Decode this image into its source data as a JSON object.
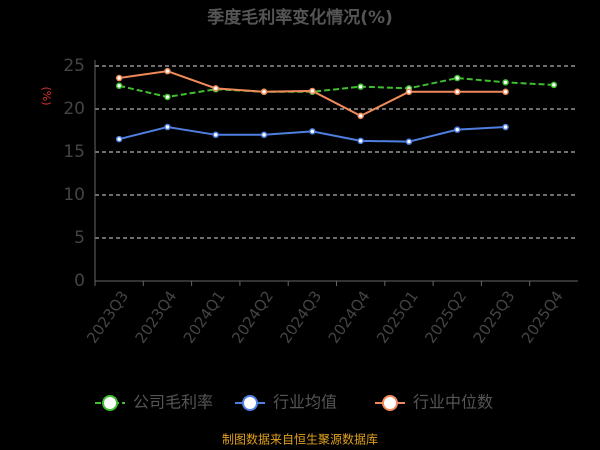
{
  "chart_data": {
    "type": "line",
    "title": "季度毛利率变化情况(%)",
    "y_label": "(%)",
    "source": "制图数据来自恒生聚源数据库",
    "categories": [
      "2023Q3",
      "2023Q4",
      "2024Q1",
      "2024Q2",
      "2024Q3",
      "2024Q4",
      "2025Q1",
      "2025Q2",
      "2025Q3",
      "2025Q4"
    ],
    "series": [
      {
        "name": "公司毛利率",
        "color": "#3fbf2f",
        "dashed": true,
        "values": [
          22.7,
          21.4,
          22.3,
          22.0,
          22.0,
          22.6,
          22.4,
          23.6,
          23.1,
          22.8
        ]
      },
      {
        "name": "行业均值",
        "color": "#4f7fe0",
        "dashed": false,
        "values": [
          16.5,
          17.9,
          17.0,
          17.0,
          17.4,
          16.3,
          16.2,
          17.6,
          17.9,
          null
        ]
      },
      {
        "name": "行业中位数",
        "color": "#f08a5a",
        "dashed": false,
        "values": [
          23.6,
          24.4,
          22.4,
          22.0,
          22.1,
          19.2,
          22.0,
          22.0,
          22.0,
          null
        ]
      }
    ],
    "ylim": [
      0,
      25
    ],
    "yticks": [
      0,
      5,
      10,
      15,
      20,
      25
    ],
    "grid": true
  }
}
